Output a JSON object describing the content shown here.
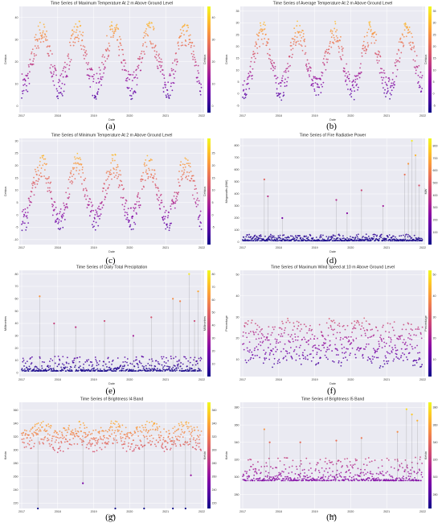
{
  "colormap": [
    "#0d0887",
    "#46039f",
    "#7201a8",
    "#9c179e",
    "#bd3786",
    "#d8576b",
    "#ed7953",
    "#fb9f3a",
    "#fdca26",
    "#f0f921"
  ],
  "chart_data": [
    {
      "id": "a",
      "caption": "(a)",
      "type": "scatter",
      "title": "Time Series of Maximum Temperature At 2 m Above Ground Level",
      "xlabel": "Date",
      "ylabel": "Celsius",
      "cbar_label": "Celsius",
      "ylim": [
        -3,
        45
      ],
      "yticks": [
        0,
        10,
        20,
        30,
        40
      ],
      "clim": [
        -3,
        45
      ],
      "cticks": [
        0,
        10,
        20,
        30,
        40
      ],
      "xticks": [
        "2017",
        "2018",
        "2019",
        "2020",
        "2021",
        "2022"
      ],
      "seasonal": {
        "base": 21,
        "amp": 12,
        "phase": 0.3,
        "noise": 6,
        "spikes": 0
      },
      "grid": true,
      "legend": "none"
    },
    {
      "id": "b",
      "caption": "(b)",
      "type": "scatter",
      "title": "Time Series of Average Temperature At 2 m Above Ground Level",
      "xlabel": "Date",
      "ylabel": "Celsius",
      "cbar_label": "Celsius",
      "ylim": [
        -8,
        37
      ],
      "yticks": [
        -5,
        0,
        5,
        10,
        15,
        20,
        25,
        30,
        35
      ],
      "clim": [
        -8,
        37
      ],
      "cticks": [
        -5,
        0,
        5,
        10,
        15,
        20,
        25,
        30,
        35
      ],
      "xticks": [
        "2017",
        "2018",
        "2019",
        "2020",
        "2021",
        "2022"
      ],
      "seasonal": {
        "base": 14,
        "amp": 12,
        "phase": 0.3,
        "noise": 5,
        "spikes": 0
      },
      "grid": true,
      "legend": "none"
    },
    {
      "id": "c",
      "caption": "(c)",
      "type": "scatter",
      "title": "Time Series of Minimum Temperature At 2 m Above Ground Level",
      "xlabel": "Date",
      "ylabel": "Celsius",
      "cbar_label": "Celsius",
      "ylim": [
        -12,
        31
      ],
      "yticks": [
        -10,
        -5,
        0,
        5,
        10,
        15,
        20,
        25,
        30
      ],
      "clim": [
        -12,
        31
      ],
      "cticks": [
        -5,
        0,
        5,
        10,
        15,
        20,
        25
      ],
      "xticks": [
        "2017",
        "2018",
        "2019",
        "2020",
        "2021",
        "2022"
      ],
      "seasonal": {
        "base": 9,
        "amp": 11,
        "phase": 0.3,
        "noise": 5,
        "spikes": 0
      },
      "grid": true,
      "legend": "none"
    },
    {
      "id": "d",
      "caption": "(d)",
      "type": "scatter",
      "title": "Time Series of Fire Radiative Power",
      "xlabel": "Date",
      "ylabel": "Megawatts (MW)",
      "cbar_label": "MW",
      "ylim": [
        -20,
        860
      ],
      "yticks": [
        0,
        100,
        200,
        300,
        400,
        500,
        600,
        700,
        800
      ],
      "clim": [
        0,
        860
      ],
      "cticks": [
        100,
        200,
        300,
        400,
        500,
        600,
        700,
        800
      ],
      "xticks": [
        "2017",
        "2018",
        "2019",
        "2020",
        "2021",
        "2022"
      ],
      "seasonal": {
        "base": 12,
        "amp": 0,
        "phase": 0,
        "noise": 18,
        "spikes": 1
      },
      "spike_points": [
        [
          0.6,
          520
        ],
        [
          0.7,
          380
        ],
        [
          1.1,
          200
        ],
        [
          2.6,
          350
        ],
        [
          2.9,
          240
        ],
        [
          3.3,
          430
        ],
        [
          3.9,
          300
        ],
        [
          4.5,
          560
        ],
        [
          4.6,
          650
        ],
        [
          4.7,
          840
        ],
        [
          4.8,
          720
        ],
        [
          4.9,
          470
        ]
      ],
      "grid": true,
      "legend": "none"
    },
    {
      "id": "e",
      "caption": "(e)",
      "type": "scatter",
      "title": "Time Series of Daily Total Precipitation",
      "xlabel": "Date",
      "ylabel": "Millimeters",
      "cbar_label": "Millimeters",
      "ylim": [
        -3,
        83
      ],
      "yticks": [
        0,
        10,
        20,
        30,
        40,
        50,
        60,
        70,
        80
      ],
      "clim": [
        0,
        83
      ],
      "cticks": [
        10,
        20,
        30,
        40,
        50,
        60,
        70,
        80
      ],
      "xticks": [
        "2017",
        "2018",
        "2019",
        "2020",
        "2021",
        "2022"
      ],
      "seasonal": {
        "base": 1.5,
        "amp": 0,
        "phase": 0,
        "noise": 4,
        "spikes": 1
      },
      "spike_points": [
        [
          0.5,
          62
        ],
        [
          0.9,
          40
        ],
        [
          1.5,
          37
        ],
        [
          2.3,
          42
        ],
        [
          3.1,
          30
        ],
        [
          3.6,
          45
        ],
        [
          4.2,
          60
        ],
        [
          4.4,
          58
        ],
        [
          4.65,
          80
        ],
        [
          4.8,
          42
        ],
        [
          4.9,
          66
        ]
      ],
      "grid": true,
      "legend": "none"
    },
    {
      "id": "f",
      "caption": "(f)",
      "type": "scatter",
      "title": "Time Series of Maximum Wind Speed at 10 m Above Ground Level",
      "xlabel": "Date",
      "ylabel": "Percentage",
      "cbar_label": "Percentage",
      "ylim": [
        2,
        52
      ],
      "yticks": [
        10,
        20,
        30,
        40,
        50
      ],
      "clim": [
        2,
        52
      ],
      "cticks": [
        10,
        20,
        30,
        40,
        50
      ],
      "xticks": [
        "2017",
        "2018",
        "2019",
        "2020",
        "2021",
        "2022"
      ],
      "seasonal": {
        "base": 18,
        "amp": 2,
        "phase": 0.1,
        "noise": 10,
        "spikes": 0
      },
      "grid": true,
      "legend": "none"
    },
    {
      "id": "g",
      "caption": "(g)",
      "type": "scatter",
      "title": "Time Series of Brightness I4 Band",
      "xlabel": "Date",
      "ylabel": "Kelvin",
      "cbar_label": "Kelvin",
      "ylim": [
        212,
        372
      ],
      "yticks": [
        220,
        240,
        260,
        280,
        300,
        320,
        340,
        360
      ],
      "clim": [
        212,
        372
      ],
      "cticks": [
        220,
        240,
        260,
        280,
        300,
        320,
        340,
        360
      ],
      "xticks": [
        "2017",
        "2018",
        "2019",
        "2020",
        "2021",
        "2022"
      ],
      "seasonal": {
        "base": 320,
        "amp": 6,
        "phase": 0.3,
        "noise": 18,
        "spikes": 0
      },
      "spike_points": [
        [
          0.45,
          212
        ],
        [
          1.7,
          250
        ],
        [
          2.6,
          212
        ],
        [
          3.4,
          212
        ],
        [
          4.2,
          212
        ],
        [
          4.55,
          212
        ],
        [
          4.7,
          262
        ]
      ],
      "grid": true,
      "legend": "none"
    },
    {
      "id": "h",
      "caption": "(h)",
      "type": "scatter",
      "title": "Time Series of Brightness I5 Band",
      "xlabel": "Date",
      "ylabel": "Kelvin",
      "cbar_label": "Kelvin",
      "ylim": [
        264,
        386
      ],
      "yticks": [
        280,
        300,
        320,
        340,
        360,
        380
      ],
      "clim": [
        264,
        386
      ],
      "cticks": [
        280,
        300,
        320,
        340,
        360,
        380
      ],
      "xticks": [
        "2017",
        "2018",
        "2019",
        "2020",
        "2021",
        "2022"
      ],
      "seasonal": {
        "base": 296,
        "amp": 8,
        "phase": 0.3,
        "noise": 9,
        "spikes": 1
      },
      "spike_points": [
        [
          0.6,
          355
        ],
        [
          0.75,
          340
        ],
        [
          1.6,
          340
        ],
        [
          2.6,
          342
        ],
        [
          3.3,
          345
        ],
        [
          4.3,
          352
        ],
        [
          4.55,
          378
        ],
        [
          4.7,
          372
        ],
        [
          4.85,
          365
        ]
      ],
      "grid": true,
      "legend": "none"
    }
  ]
}
